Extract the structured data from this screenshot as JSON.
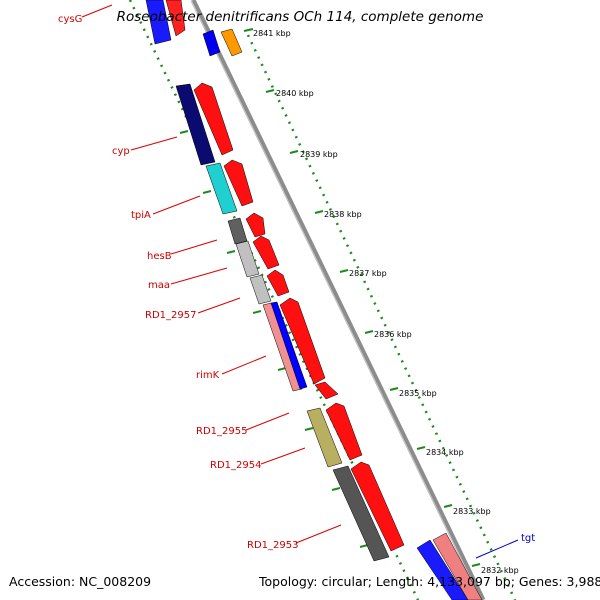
{
  "title": "Roseobacter denitrificans OCh 114, complete genome",
  "footer": {
    "accession": "Accession: NC_008209",
    "topology": "Topology: circular; Length: 4,133,097 bp; Genes: 3,988"
  },
  "kbp_ticks": [
    "2841 kbp",
    "2840 kbp",
    "2839 kbp",
    "2838 kbp",
    "2837 kbp",
    "2836 kbp",
    "2835 kbp",
    "2834 kbp",
    "2833 kbp",
    "2832 kbp"
  ],
  "gene_labels": [
    "cysG",
    "cyp",
    "tpiA",
    "hesB",
    "maa",
    "RD1_2957",
    "rimK",
    "RD1_2955",
    "RD1_2954",
    "RD1_2953",
    "tgt"
  ],
  "colors": {
    "backbone": "#888888",
    "tick_dotted": "#228b22",
    "label_red": "#cc0000",
    "label_blue": "#0000cc"
  }
}
